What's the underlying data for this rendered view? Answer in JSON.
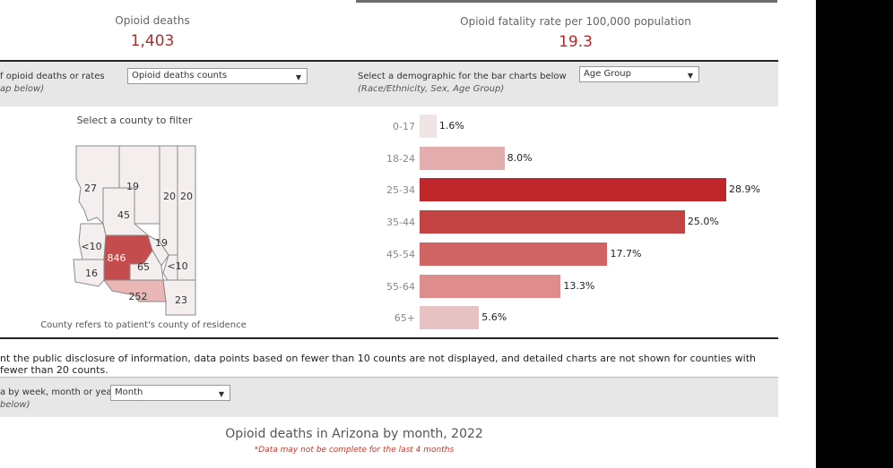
{
  "kpis": {
    "deaths_label": "Opioid deaths",
    "deaths_value": "1,403",
    "rate_label": "Opioid fatality rate per 100,000 population",
    "rate_value": "19.3"
  },
  "controls": {
    "metric_label_line1": "f opioid deaths  or rates",
    "metric_label_line2": "ap below)",
    "metric_select": "Opioid deaths counts",
    "demo_label": "Select a demographic for the bar charts below",
    "demo_note": "(Race/Ethnicity, Sex, Age Group)",
    "demo_select": "Age Group",
    "period_label_line1": "a by week, month or year",
    "period_label_line2": " below)",
    "period_select": "Month"
  },
  "map": {
    "title": "Select a county to filter",
    "caption": "County refers to patient's county of residence",
    "counties": {
      "mohave": "27",
      "coconino": "19",
      "navajo": "20",
      "apache": "20",
      "yavapai": "45",
      "la_paz": "<10",
      "maricopa": "846",
      "gila": "19",
      "pinal": "65",
      "greenlee": "<10",
      "yuma": "16",
      "pima": "252",
      "cochise": "23"
    }
  },
  "chart_data": {
    "type": "bar",
    "orientation": "horizontal",
    "categories": [
      "0-17",
      "18-24",
      "25-34",
      "35-44",
      "45-54",
      "55-64",
      "65+"
    ],
    "values": [
      1.6,
      8.0,
      28.9,
      25.0,
      17.7,
      13.3,
      5.6
    ],
    "value_labels": [
      "1.6%",
      "8.0%",
      "28.9%",
      "25.0%",
      "17.7%",
      "13.3%",
      "5.6%"
    ],
    "colors": [
      "#f1e4e4",
      "#e3adad",
      "#c0272d",
      "#c34343",
      "#d06464",
      "#de8c8c",
      "#e7c2c2"
    ],
    "xlim": [
      0,
      28.9
    ]
  },
  "footnote": "nt the public disclosure of information, data points based on fewer than 10 counts are not displayed, and detailed charts are not shown for counties with fewer than 20 counts.",
  "monthly": {
    "title": "Opioid deaths in Arizona by month, 2022",
    "subtitle": "*Data may not be complete for the last 4 months"
  },
  "icons": {
    "dropdown": "chevron-down-icon"
  }
}
